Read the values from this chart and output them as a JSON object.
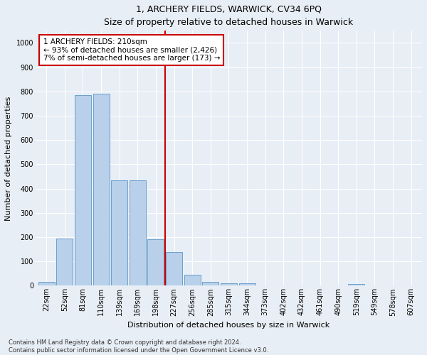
{
  "title": "1, ARCHERY FIELDS, WARWICK, CV34 6PQ",
  "subtitle": "Size of property relative to detached houses in Warwick",
  "xlabel": "Distribution of detached houses by size in Warwick",
  "ylabel": "Number of detached properties",
  "categories": [
    "22sqm",
    "52sqm",
    "81sqm",
    "110sqm",
    "139sqm",
    "169sqm",
    "198sqm",
    "227sqm",
    "256sqm",
    "285sqm",
    "315sqm",
    "344sqm",
    "373sqm",
    "402sqm",
    "432sqm",
    "461sqm",
    "490sqm",
    "519sqm",
    "549sqm",
    "578sqm",
    "607sqm"
  ],
  "values": [
    15,
    195,
    785,
    790,
    435,
    435,
    190,
    140,
    45,
    15,
    10,
    10,
    0,
    0,
    0,
    0,
    0,
    8,
    0,
    0,
    0
  ],
  "bar_color": "#b8d0ea",
  "bar_edge_color": "#6aa0cc",
  "vline_color": "#cc0000",
  "vline_x": 7,
  "annotation_text": "1 ARCHERY FIELDS: 210sqm\n← 93% of detached houses are smaller (2,426)\n7% of semi-detached houses are larger (173) →",
  "annotation_box_edgecolor": "#cc0000",
  "ylim": [
    0,
    1050
  ],
  "yticks": [
    0,
    100,
    200,
    300,
    400,
    500,
    600,
    700,
    800,
    900,
    1000
  ],
  "footer_line1": "Contains HM Land Registry data © Crown copyright and database right 2024.",
  "footer_line2": "Contains public sector information licensed under the Open Government Licence v3.0.",
  "bg_color": "#e8eef5",
  "plot_bg_color": "#e8eef5",
  "grid_color": "#ffffff",
  "title_fontsize": 9,
  "subtitle_fontsize": 8,
  "axis_label_fontsize": 8,
  "tick_fontsize": 7,
  "annotation_fontsize": 7.5,
  "footer_fontsize": 6
}
